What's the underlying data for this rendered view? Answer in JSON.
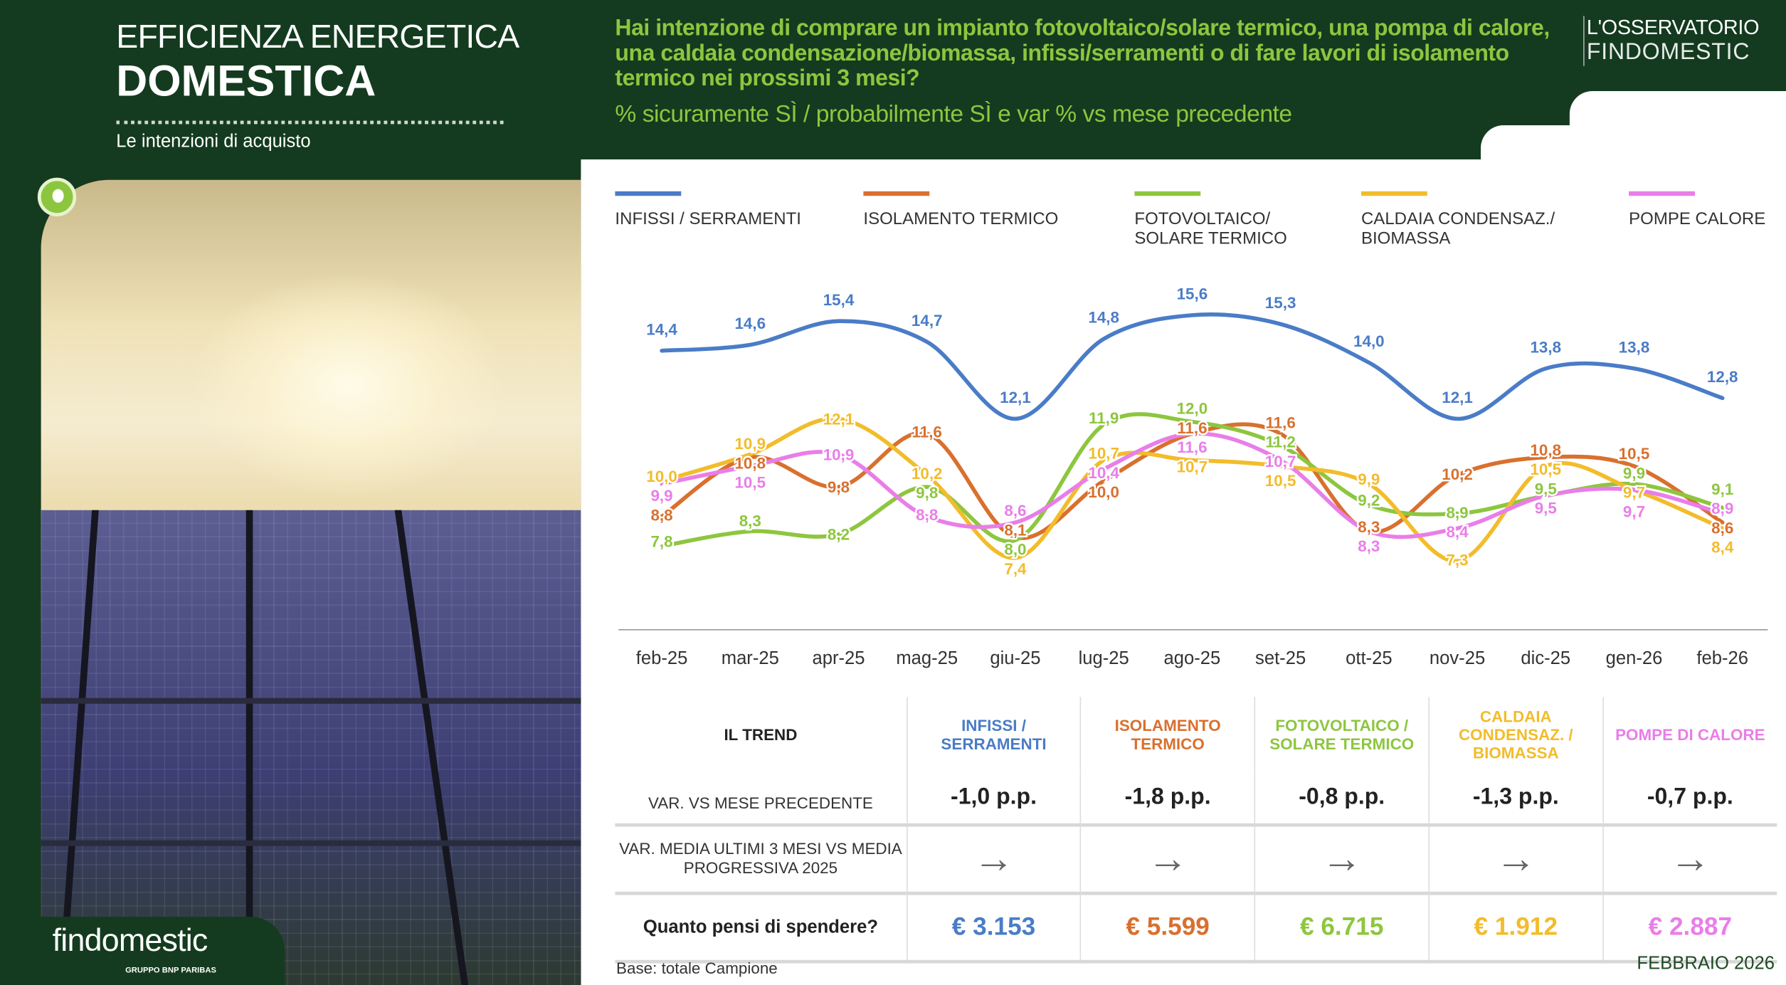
{
  "header": {
    "title_line1": "EFFICIENZA ENERGETICA",
    "title_line2": "DOMESTICA",
    "subtitle": "Le intenzioni di acquisto",
    "question": "Hai intenzione di comprare un impianto fotovoltaico/solare termico, una pompa di calore, una caldaia condensazione/biomassa, infissi/serramenti o di fare lavori di isolamento termico nei prossimi 3 mesi?",
    "question_sub": "% sicuramente SÌ / probabilmente SÌ e var % vs mese precedente",
    "logo_line1": "L'OSSERVATORIO",
    "logo_line2": "FINDOMESTIC"
  },
  "chart_data": {
    "type": "line",
    "categories": [
      "feb-25",
      "mar-25",
      "apr-25",
      "mag-25",
      "giu-25",
      "lug-25",
      "ago-25",
      "set-25",
      "ott-25",
      "nov-25",
      "dic-25",
      "gen-26",
      "feb-26"
    ],
    "series": [
      {
        "name": "INFISSI / SERRAMENTI",
        "color": "#4a7cc7",
        "values": [
          14.4,
          14.6,
          15.4,
          14.7,
          12.1,
          14.8,
          15.6,
          15.3,
          14.0,
          12.1,
          13.8,
          13.8,
          12.8
        ]
      },
      {
        "name": "ISOLAMENTO TERMICO",
        "color": "#d9702e",
        "values": [
          8.8,
          10.8,
          9.8,
          11.6,
          8.1,
          10.0,
          11.6,
          11.6,
          8.3,
          10.2,
          10.8,
          10.5,
          8.6
        ]
      },
      {
        "name": "FOTOVOLTAICO/ SOLARE TERMICO",
        "color": "#8dc63f",
        "values": [
          7.8,
          8.3,
          8.2,
          9.8,
          8.0,
          11.9,
          12.0,
          11.2,
          9.2,
          8.9,
          9.5,
          9.9,
          9.1
        ]
      },
      {
        "name": "CALDAIA CONDENSAZ./ BIOMASSA",
        "color": "#f2bc2b",
        "values": [
          10.0,
          10.9,
          12.1,
          10.2,
          7.4,
          10.7,
          10.7,
          10.5,
          9.9,
          7.3,
          10.5,
          9.7,
          8.4
        ]
      },
      {
        "name": "POMPE CALORE",
        "color": "#e97ee8",
        "values": [
          9.9,
          10.5,
          10.9,
          8.8,
          8.6,
          10.4,
          11.6,
          10.7,
          8.3,
          8.4,
          9.5,
          9.7,
          8.9
        ]
      }
    ],
    "legend": "top",
    "grid": false,
    "ylim": [
      5,
      16.5
    ]
  },
  "table": {
    "header_label": "IL TREND",
    "columns": [
      {
        "label": "INFISSI / SERRAMENTI",
        "color": "#4a7cc7"
      },
      {
        "label": "ISOLAMENTO TERMICO",
        "color": "#d9702e"
      },
      {
        "label": "FOTOVOLTAICO / SOLARE TERMICO",
        "color": "#8dc63f"
      },
      {
        "label": "CALDAIA CONDENSAZ. / BIOMASSA",
        "color": "#f2bc2b"
      },
      {
        "label": "POMPE DI CALORE",
        "color": "#e97ee8"
      }
    ],
    "row_var_label": "VAR. VS MESE PRECEDENTE",
    "row_var": [
      "-1,0 p.p.",
      "-1,8 p.p.",
      "-0,8 p.p.",
      "-1,3 p.p.",
      "-0,7 p.p."
    ],
    "row_trend_label": "VAR.  MEDIA ULTIMI 3 MESI VS MEDIA PROGRESSIVA  2025",
    "row_trend": [
      "arrow-right-icon",
      "arrow-right-icon",
      "arrow-right-icon",
      "arrow-right-icon",
      "arrow-right-icon"
    ],
    "arrow_glyph": "→",
    "row_spend_label": "Quanto pensi di spendere?",
    "row_spend": [
      "€ 3.153",
      "€ 5.599",
      "€ 6.715",
      "€ 1.912",
      "€ 2.887"
    ]
  },
  "footer": {
    "base": "Base: totale Campione",
    "date": "FEBBRAIO 2026",
    "brand": "findomestic",
    "brand_sub": "GRUPPO BNP PARIBAS"
  }
}
